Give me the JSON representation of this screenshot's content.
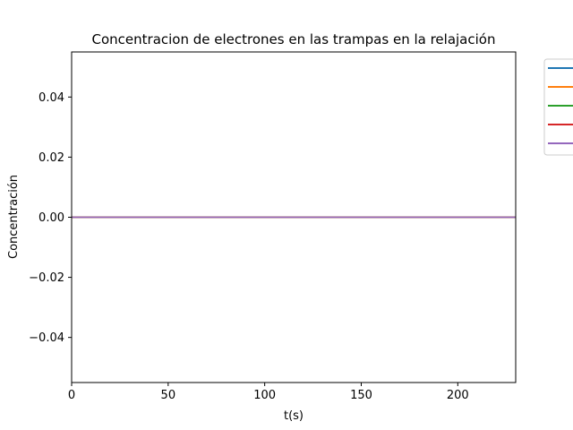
{
  "chart_data": {
    "type": "line",
    "title": "Concentracion de electrones en las trampas en la relajación",
    "xlabel": "t(s)",
    "ylabel": "Concentración",
    "xlim": [
      0,
      230
    ],
    "ylim": [
      -0.055,
      0.055
    ],
    "xticks": [
      0,
      50,
      100,
      150,
      200
    ],
    "xtick_labels": [
      "0",
      "50",
      "100",
      "150",
      "200"
    ],
    "yticks": [
      -0.04,
      -0.02,
      0.0,
      0.02,
      0.04
    ],
    "ytick_labels": [
      "−0.04",
      "−0.02",
      "0.00",
      "0.02",
      "0.04"
    ],
    "grid": false,
    "legend_position": "outside-top-right",
    "series": [
      {
        "color": "#1f77b4",
        "x": [
          0,
          230
        ],
        "y": [
          0,
          0
        ]
      },
      {
        "color": "#ff7f0e",
        "x": [
          0,
          230
        ],
        "y": [
          0,
          0
        ]
      },
      {
        "color": "#2ca02c",
        "x": [
          0,
          230
        ],
        "y": [
          0,
          0
        ]
      },
      {
        "color": "#d62728",
        "x": [
          0,
          230
        ],
        "y": [
          0,
          0
        ]
      },
      {
        "color": "#9467bd",
        "x": [
          0,
          230
        ],
        "y": [
          0,
          0
        ]
      }
    ]
  }
}
